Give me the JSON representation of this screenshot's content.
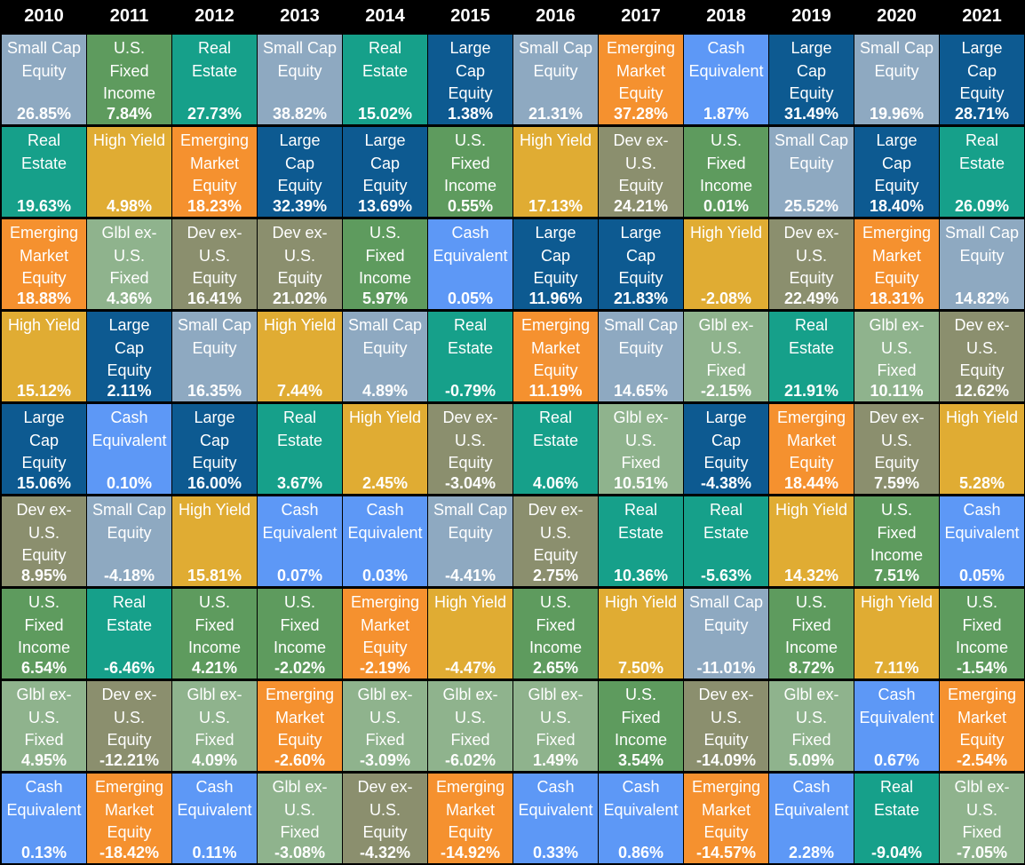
{
  "chart_data": {
    "type": "table",
    "title": "",
    "years": [
      "2010",
      "2011",
      "2012",
      "2013",
      "2014",
      "2015",
      "2016",
      "2017",
      "2018",
      "2019",
      "2020",
      "2021"
    ],
    "asset_classes": {
      "SCE": {
        "label": "Small Cap\nEquity",
        "color": "#8ea9c1"
      },
      "UFI": {
        "label": "U.S.\nFixed\nIncome",
        "color": "#5e9b5e"
      },
      "RE": {
        "label": "Real\nEstate",
        "color": "#16a08a"
      },
      "LCE": {
        "label": "Large\nCap\nEquity",
        "color": "#0d5a91"
      },
      "EME": {
        "label": "Emerging\nMarket\nEquity",
        "color": "#f5912f"
      },
      "CE": {
        "label": "Cash\nEquivalent",
        "color": "#5d98f6"
      },
      "HY": {
        "label": "High Yield",
        "color": "#e0ac33"
      },
      "DEV": {
        "label": "Dev ex-\nU.S.\nEquity",
        "color": "#8b8f6e"
      },
      "GLB": {
        "label": "Glbl ex-\nU.S.\nFixed",
        "color": "#8fb38d"
      }
    },
    "columns": [
      [
        [
          "SCE",
          "26.85%"
        ],
        [
          "RE",
          "19.63%"
        ],
        [
          "EME",
          "18.88%"
        ],
        [
          "HY",
          "15.12%"
        ],
        [
          "LCE",
          "15.06%"
        ],
        [
          "DEV",
          "8.95%"
        ],
        [
          "UFI",
          "6.54%"
        ],
        [
          "GLB",
          "4.95%"
        ],
        [
          "CE",
          "0.13%"
        ]
      ],
      [
        [
          "UFI",
          "7.84%"
        ],
        [
          "HY",
          "4.98%"
        ],
        [
          "GLB",
          "4.36%"
        ],
        [
          "LCE",
          "2.11%"
        ],
        [
          "CE",
          "0.10%"
        ],
        [
          "SCE",
          "-4.18%"
        ],
        [
          "RE",
          "-6.46%"
        ],
        [
          "DEV",
          "-12.21%"
        ],
        [
          "EME",
          "-18.42%"
        ]
      ],
      [
        [
          "RE",
          "27.73%"
        ],
        [
          "EME",
          "18.23%"
        ],
        [
          "DEV",
          "16.41%"
        ],
        [
          "SCE",
          "16.35%"
        ],
        [
          "LCE",
          "16.00%"
        ],
        [
          "HY",
          "15.81%"
        ],
        [
          "UFI",
          "4.21%"
        ],
        [
          "GLB",
          "4.09%"
        ],
        [
          "CE",
          "0.11%"
        ]
      ],
      [
        [
          "SCE",
          "38.82%"
        ],
        [
          "LCE",
          "32.39%"
        ],
        [
          "DEV",
          "21.02%"
        ],
        [
          "HY",
          "7.44%"
        ],
        [
          "RE",
          "3.67%"
        ],
        [
          "CE",
          "0.07%"
        ],
        [
          "UFI",
          "-2.02%"
        ],
        [
          "EME",
          "-2.60%"
        ],
        [
          "GLB",
          "-3.08%"
        ]
      ],
      [
        [
          "RE",
          "15.02%"
        ],
        [
          "LCE",
          "13.69%"
        ],
        [
          "UFI",
          "5.97%"
        ],
        [
          "SCE",
          "4.89%"
        ],
        [
          "HY",
          "2.45%"
        ],
        [
          "CE",
          "0.03%"
        ],
        [
          "EME",
          "-2.19%"
        ],
        [
          "GLB",
          "-3.09%"
        ],
        [
          "DEV",
          "-4.32%"
        ]
      ],
      [
        [
          "LCE",
          "1.38%"
        ],
        [
          "UFI",
          "0.55%"
        ],
        [
          "CE",
          "0.05%"
        ],
        [
          "RE",
          "-0.79%"
        ],
        [
          "DEV",
          "-3.04%"
        ],
        [
          "SCE",
          "-4.41%"
        ],
        [
          "HY",
          "-4.47%"
        ],
        [
          "GLB",
          "-6.02%"
        ],
        [
          "EME",
          "-14.92%"
        ]
      ],
      [
        [
          "SCE",
          "21.31%"
        ],
        [
          "HY",
          "17.13%"
        ],
        [
          "LCE",
          "11.96%"
        ],
        [
          "EME",
          "11.19%"
        ],
        [
          "RE",
          "4.06%"
        ],
        [
          "DEV",
          "2.75%"
        ],
        [
          "UFI",
          "2.65%"
        ],
        [
          "GLB",
          "1.49%"
        ],
        [
          "CE",
          "0.33%"
        ]
      ],
      [
        [
          "EME",
          "37.28%"
        ],
        [
          "DEV",
          "24.21%"
        ],
        [
          "LCE",
          "21.83%"
        ],
        [
          "SCE",
          "14.65%"
        ],
        [
          "GLB",
          "10.51%"
        ],
        [
          "RE",
          "10.36%"
        ],
        [
          "HY",
          "7.50%"
        ],
        [
          "UFI",
          "3.54%"
        ],
        [
          "CE",
          "0.86%"
        ]
      ],
      [
        [
          "CE",
          "1.87%"
        ],
        [
          "UFI",
          "0.01%"
        ],
        [
          "HY",
          "-2.08%"
        ],
        [
          "GLB",
          "-2.15%"
        ],
        [
          "LCE",
          "-4.38%"
        ],
        [
          "RE",
          "-5.63%"
        ],
        [
          "SCE",
          "-11.01%"
        ],
        [
          "DEV",
          "-14.09%"
        ],
        [
          "EME",
          "-14.57%"
        ]
      ],
      [
        [
          "LCE",
          "31.49%"
        ],
        [
          "SCE",
          "25.52%"
        ],
        [
          "DEV",
          "22.49%"
        ],
        [
          "RE",
          "21.91%"
        ],
        [
          "EME",
          "18.44%"
        ],
        [
          "HY",
          "14.32%"
        ],
        [
          "UFI",
          "8.72%"
        ],
        [
          "GLB",
          "5.09%"
        ],
        [
          "CE",
          "2.28%"
        ]
      ],
      [
        [
          "SCE",
          "19.96%"
        ],
        [
          "LCE",
          "18.40%"
        ],
        [
          "EME",
          "18.31%"
        ],
        [
          "GLB",
          "10.11%"
        ],
        [
          "DEV",
          "7.59%"
        ],
        [
          "UFI",
          "7.51%"
        ],
        [
          "HY",
          "7.11%"
        ],
        [
          "CE",
          "0.67%"
        ],
        [
          "RE",
          "-9.04%"
        ]
      ],
      [
        [
          "LCE",
          "28.71%"
        ],
        [
          "RE",
          "26.09%"
        ],
        [
          "SCE",
          "14.82%"
        ],
        [
          "DEV",
          "12.62%"
        ],
        [
          "HY",
          "5.28%"
        ],
        [
          "CE",
          "0.05%"
        ],
        [
          "UFI",
          "-1.54%"
        ],
        [
          "EME",
          "-2.54%"
        ],
        [
          "GLB",
          "-7.05%"
        ]
      ]
    ]
  }
}
